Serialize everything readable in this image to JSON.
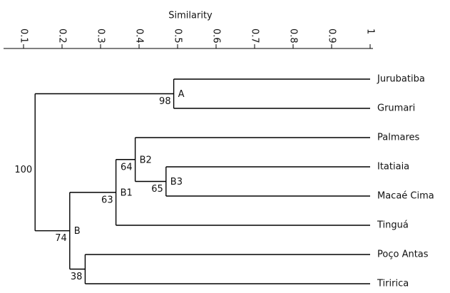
{
  "chart_data": {
    "type": "dendrogram",
    "x_label": "Similarity",
    "xlim": [
      0.05,
      1
    ],
    "xticks": [
      0.1,
      0.2,
      0.3,
      0.4,
      0.5,
      0.6,
      0.7,
      0.8,
      0.9,
      1
    ],
    "tree": {
      "similarity": 0.13,
      "support": 100,
      "children": [
        {
          "similarity": 0.49,
          "support": 98,
          "label": "A",
          "children": [
            {
              "name": "Jurubatiba"
            },
            {
              "name": "Grumari"
            }
          ]
        },
        {
          "similarity": 0.22,
          "support": 74,
          "label": "B",
          "children": [
            {
              "similarity": 0.34,
              "support": 63,
              "label": "B1",
              "children": [
                {
                  "similarity": 0.39,
                  "support": 64,
                  "label": "B2",
                  "children": [
                    {
                      "name": "Palmares"
                    },
                    {
                      "similarity": 0.47,
                      "support": 65,
                      "label": "B3",
                      "children": [
                        {
                          "name": "Itatiaia"
                        },
                        {
                          "name": "Macaé Cima"
                        }
                      ]
                    }
                  ]
                },
                {
                  "name": "Tinguá"
                }
              ]
            },
            {
              "similarity": 0.26,
              "support": 38,
              "children": [
                {
                  "name": "Poço Antas"
                },
                {
                  "name": "Tiririca"
                }
              ]
            }
          ]
        }
      ]
    }
  }
}
